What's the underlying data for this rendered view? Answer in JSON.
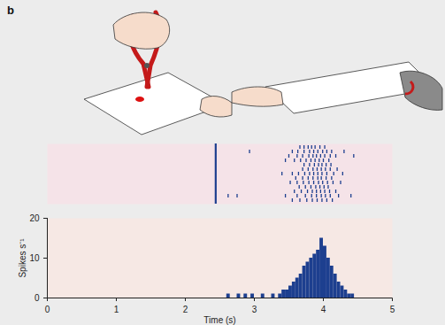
{
  "chart_data": [
    {
      "type": "raster",
      "title": "b",
      "color": "#1d3f8f",
      "xlim": [
        0,
        5
      ],
      "tick_labels": false,
      "event_time": 2.44,
      "trials": [
        [
          3.66,
          3.72,
          3.78,
          3.83,
          3.88,
          3.95,
          4.02
        ],
        [
          2.93,
          3.55,
          3.63,
          3.72,
          3.8,
          3.86,
          3.92,
          3.99,
          4.05,
          4.12,
          4.3
        ],
        [
          3.5,
          3.62,
          3.7,
          3.79,
          3.85,
          3.9,
          3.96,
          4.02,
          4.1,
          4.18,
          4.44
        ],
        [
          3.45,
          3.58,
          3.67,
          3.75,
          3.82,
          3.88,
          3.94,
          4.0,
          4.08
        ],
        [
          3.72,
          3.8,
          3.87,
          3.93,
          3.98,
          4.04,
          4.11
        ],
        [
          3.7,
          3.78,
          3.85,
          3.91,
          3.97,
          4.03,
          4.1,
          4.2
        ],
        [
          3.4,
          3.55,
          3.64,
          3.73,
          3.8,
          3.86,
          3.92,
          3.98,
          4.05,
          4.15,
          4.28
        ],
        [
          3.6,
          3.7,
          3.78,
          3.85,
          3.92,
          3.97,
          4.04,
          4.12
        ],
        [
          3.52,
          3.62,
          3.71,
          3.79,
          3.86,
          3.93,
          3.99,
          4.06,
          4.14,
          4.25
        ],
        [
          3.65,
          3.74,
          3.82,
          3.89,
          3.95,
          4.01,
          4.07
        ],
        [
          3.58,
          3.68,
          3.77,
          3.84,
          3.9,
          3.96,
          4.02,
          4.09,
          4.18
        ],
        [
          2.62,
          2.75,
          3.45,
          3.62,
          3.74,
          3.83,
          3.9,
          3.97,
          4.03,
          4.1,
          4.22,
          4.4
        ],
        [
          3.55,
          3.66,
          3.76,
          3.84,
          3.91,
          3.98,
          4.05,
          4.13
        ]
      ]
    },
    {
      "type": "histogram",
      "color": "#1d3f8f",
      "xlabel": "Time (s)",
      "ylabel": "Spikes s⁻¹",
      "xlim": [
        0,
        5
      ],
      "xticks": [
        0,
        1,
        2,
        3,
        4,
        5
      ],
      "ylim": [
        0,
        20
      ],
      "yticks": [
        0,
        10,
        20
      ],
      "bins": [
        2.5,
        2.55,
        2.6,
        2.65,
        2.7,
        2.75,
        2.8,
        2.85,
        2.9,
        2.95,
        3.0,
        3.05,
        3.1,
        3.15,
        3.2,
        3.25,
        3.3,
        3.35,
        3.4,
        3.45,
        3.5,
        3.55,
        3.6,
        3.65,
        3.7,
        3.75,
        3.8,
        3.85,
        3.9,
        3.95,
        4.0,
        4.05,
        4.1,
        4.15,
        4.2,
        4.25,
        4.3,
        4.35,
        4.4,
        4.45,
        4.5
      ],
      "counts": [
        0,
        0,
        1,
        0,
        0,
        1,
        0,
        1,
        0,
        1,
        0,
        0,
        1,
        0,
        0,
        1,
        0,
        1,
        2,
        2,
        3,
        4,
        5,
        6,
        8,
        9,
        10,
        11,
        12,
        15,
        13,
        10,
        8,
        6,
        4,
        3,
        2,
        1,
        1,
        0
      ]
    }
  ]
}
